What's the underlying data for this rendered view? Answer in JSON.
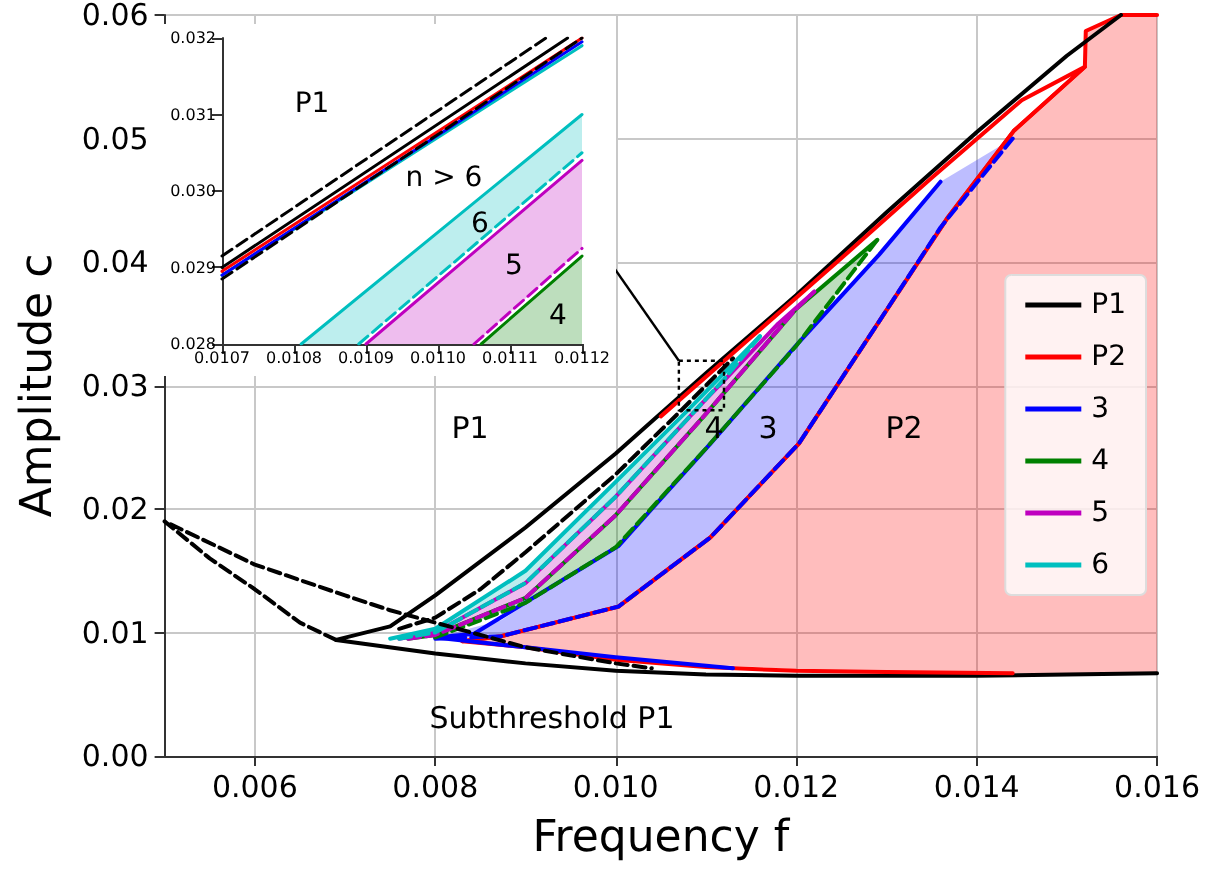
{
  "chart_data": [
    {
      "type": "line",
      "xlabel": "Frequency f",
      "ylabel": "Amplitude c",
      "xlim": [
        0.005,
        0.016
      ],
      "ylim": [
        0,
        0.06
      ],
      "xticks": [
        0.006,
        0.008,
        {
          "value": 0.01,
          "label": "0.010"
        },
        0.012,
        0.014,
        0.016
      ],
      "yticks": [
        {
          "value": 0,
          "label": "0.00"
        },
        {
          "value": 0.01,
          "label": "0.01"
        },
        {
          "value": 0.02,
          "label": "0.02"
        },
        {
          "value": 0.03,
          "label": "0.03"
        },
        {
          "value": 0.04,
          "label": "0.04"
        },
        {
          "value": 0.05,
          "label": "0.05"
        },
        {
          "value": 0.06,
          "label": "0.06"
        }
      ],
      "grid": true,
      "legend": "right",
      "line_style": "solid",
      "marker": "none",
      "annotations": [
        "P1",
        "4",
        "3",
        "P2",
        "Subthreshold P1"
      ],
      "series": [
        {
          "color": "#ff0000",
          "x": [
            0.0083,
            0.00873,
            0.01003,
            0.01105,
            0.01203,
            0.01292,
            0.01367,
            0.01441,
            0.0152,
            0.01521,
            0.0156,
            0.016
          ],
          "values": [
            0.0093,
            0.0097,
            0.0121,
            0.0177,
            0.0253,
            0.0352,
            0.0435,
            0.0506,
            0.0558,
            0.0587,
            0.06,
            0.06
          ],
          "lower": [
            0.0093,
            0.0091,
            0.008,
            0.0074,
            0.007,
            0.0069,
            0.0068,
            0.0067,
            0.0067,
            0.0067,
            0.0067,
            0.0067
          ],
          "upper": [
            0.0093,
            0.0097,
            0.0121,
            0.0177,
            0.0253,
            0.0352,
            0.0435,
            0.0506,
            0.0558,
            0.0587,
            0.06,
            0.06
          ]
        },
        {
          "color": "#0000ff",
          "line_style": "dashed",
          "x": [
            0.008,
            0.00873,
            0.01003,
            0.01105,
            0.01203,
            0.01292,
            0.0136,
            0.0144
          ],
          "values": [
            0.0095,
            0.0097,
            0.0121,
            0.0177,
            0.0253,
            0.0352,
            0.0428,
            0.05
          ],
          "lower": [
            0.0095,
            0.0097,
            0.0121,
            0.0177,
            0.0253,
            0.0352,
            0.0428,
            0.05
          ],
          "upper": [
            0.0096,
            0.011,
            0.017,
            0.0253,
            0.0335,
            0.0406,
            0.0465,
            0.05
          ]
        },
        {
          "color": "#008000",
          "line_style": "dashed",
          "x": [
            0.008,
            0.009,
            0.01,
            0.011,
            0.012,
            0.0129
          ],
          "values": [
            0.0096,
            0.0124,
            0.0169,
            0.0249,
            0.0332,
            0.0418
          ],
          "lower": [
            0.0096,
            0.0124,
            0.0169,
            0.0249,
            0.0332,
            0.0418
          ],
          "upper": [
            0.0098,
            0.0128,
            0.0195,
            0.0277,
            0.0362,
            0.0418
          ]
        },
        {
          "color": "#bf00bf",
          "line_style": "dashed",
          "x": [
            0.0077,
            0.008,
            0.009,
            0.01,
            0.011,
            0.012,
            0.0122
          ],
          "values": [
            0.0095,
            0.0098,
            0.0128,
            0.0195,
            0.0277,
            0.0362,
            0.0376
          ],
          "lower": [
            0.0095,
            0.0098,
            0.0128,
            0.0195,
            0.0277,
            0.0362,
            0.0376
          ],
          "upper": [
            0.0095,
            0.01,
            0.014,
            0.021,
            0.0289,
            0.0364,
            0.0376
          ]
        },
        {
          "color": "#00bfbf",
          "line_style": "dashed",
          "x": [
            0.0076,
            0.008,
            0.009,
            0.01,
            0.011,
            0.0112,
            0.0116
          ],
          "values": [
            0.0095,
            0.01,
            0.014,
            0.021,
            0.0289,
            0.0305,
            0.034
          ],
          "lower": [
            0.0095,
            0.01,
            0.014,
            0.021,
            0.0289,
            0.0305,
            0.034
          ],
          "upper": [
            0.0097,
            0.0103,
            0.015,
            0.0222,
            0.0295,
            0.031,
            0.034
          ]
        },
        {
          "color": "#000000",
          "line_style": "dashed",
          "x": [
            0.0069,
            0.0065,
            0.006,
            0.0055,
            0.005,
            0.006,
            0.007,
            0.0075,
            0.008,
            0.009,
            0.01,
            0.0104
          ],
          "values": [
            0.0094,
            0.0108,
            0.0135,
            0.016,
            0.019,
            0.0155,
            0.013,
            0.0118,
            0.0108,
            0.0088,
            0.0075,
            0.0071
          ]
        },
        {
          "color": "#000000",
          "line_style": "dashed",
          "x": [
            0.0076,
            0.008,
            0.0085,
            0.009,
            0.01,
            0.0107,
            0.0113
          ],
          "values": [
            0.0103,
            0.0112,
            0.0135,
            0.0165,
            0.0228,
            0.0278,
            0.0322
          ]
        },
        {
          "name": "P1",
          "color": "#000000",
          "x": [
            0.0156,
            0.015,
            0.014,
            0.013,
            0.012,
            0.011,
            0.01,
            0.009,
            0.008,
            0.0075,
            0.0069,
            0.008,
            0.009,
            0.01,
            0.011,
            0.012,
            0.013,
            0.014,
            0.015,
            0.016
          ],
          "values": [
            0.06,
            0.0567,
            0.0505,
            0.044,
            0.0373,
            0.031,
            0.0245,
            0.0185,
            0.013,
            0.0105,
            0.0094,
            0.0083,
            0.0075,
            0.0069,
            0.0066,
            0.0065,
            0.0065,
            0.0065,
            0.0066,
            0.0067
          ]
        },
        {
          "name": "P2",
          "color": "#ff0000",
          "x": [
            0.0105,
            0.0115,
            0.0125,
            0.0135,
            0.0145,
            0.0152,
            0.01441,
            0.01367,
            0.01292,
            0.01203,
            0.01105,
            0.01003,
            0.00873,
            0.0083,
            0.009,
            0.01,
            0.011,
            0.012,
            0.013,
            0.0144
          ],
          "values": [
            0.0275,
            0.0339,
            0.0403,
            0.0468,
            0.0531,
            0.0558,
            0.0506,
            0.0435,
            0.0352,
            0.0253,
            0.0177,
            0.0121,
            0.0097,
            0.0093,
            0.0088,
            0.0078,
            0.0072,
            0.0069,
            0.0068,
            0.0067
          ]
        },
        {
          "name": "3",
          "color": "#0000ff",
          "x": [
            0.0113,
            0.01,
            0.009,
            0.008,
            0.00843,
            0.01003,
            0.01105,
            0.01203,
            0.01292,
            0.0136
          ],
          "values": [
            0.0071,
            0.008,
            0.0088,
            0.0096,
            0.0099,
            0.017,
            0.0253,
            0.0335,
            0.0406,
            0.0465
          ]
        },
        {
          "name": "4",
          "color": "#008000",
          "x": [
            0.0077,
            0.008,
            0.009,
            0.01,
            0.011,
            0.012,
            0.0129
          ],
          "values": [
            0.0095,
            0.0098,
            0.0128,
            0.0195,
            0.0277,
            0.0362,
            0.0418
          ]
        },
        {
          "name": "5",
          "color": "#bf00bf",
          "x": [
            0.0076,
            0.008,
            0.009,
            0.01,
            0.011,
            0.0112,
            0.0118,
            0.0122
          ],
          "values": [
            0.0095,
            0.01,
            0.014,
            0.021,
            0.0289,
            0.0304,
            0.035,
            0.0376
          ]
        },
        {
          "name": "6",
          "color": "#00bfbf",
          "x": [
            0.0075,
            0.008,
            0.009,
            0.01,
            0.0108,
            0.0112,
            0.0116
          ],
          "values": [
            0.0095,
            0.0103,
            0.015,
            0.0222,
            0.028,
            0.031,
            0.034
          ]
        }
      ]
    },
    {
      "type": "line",
      "xlim": [
        0.0107,
        0.0112
      ],
      "ylim": [
        0.028,
        0.032
      ],
      "xticks": [
        {
          "value": 0.0107,
          "label": "0.0107"
        },
        {
          "value": 0.0108,
          "label": "0.0108"
        },
        {
          "value": 0.0109,
          "label": "0.0109"
        },
        {
          "value": 0.011,
          "label": "0.0110"
        },
        {
          "value": 0.0111,
          "label": "0.0111"
        },
        {
          "value": 0.0112,
          "label": "0.0112"
        }
      ],
      "yticks": [
        {
          "value": 0.028,
          "label": "0.028"
        },
        {
          "value": 0.029,
          "label": "0.029"
        },
        {
          "value": 0.03,
          "label": "0.030"
        },
        {
          "value": 0.031,
          "label": "0.031"
        },
        {
          "value": 0.032,
          "label": "0.032"
        }
      ],
      "line_style": "solid",
      "marker": "none",
      "annotations": [
        "P1",
        "n > 6",
        "6",
        "5",
        "4"
      ],
      "series": [
        {
          "color": "#00bfbf",
          "line_style": "dashed",
          "x": [
            0.01081,
            0.01089,
            0.0112
          ],
          "values": [
            null,
            0.028,
            0.0305
          ],
          "lower": [
            0.028,
            0.028,
            0.0305
          ],
          "upper": [
            0.028,
            0.02862,
            0.031
          ]
        },
        {
          "color": "#bf00bf",
          "line_style": "dashed",
          "x": [
            0.0109,
            0.01105,
            0.0112
          ],
          "values": [
            null,
            0.028,
            0.02925
          ],
          "lower": [
            0.028,
            0.028,
            0.02925
          ],
          "upper": [
            0.028,
            0.0292,
            0.0304
          ]
        },
        {
          "color": "#008000",
          "x": [
            0.01106,
            0.0112
          ],
          "values": [
            0.028,
            0.02915
          ],
          "lower": [
            0.028,
            0.028
          ],
          "upper": [
            0.028,
            0.02915
          ]
        },
        {
          "color": "#000000",
          "line_style": "dashed",
          "x": [
            0.0107,
            0.01115
          ],
          "values": [
            0.02915,
            0.032
          ]
        },
        {
          "color": "#000000",
          "line_style": "dashed",
          "x": [
            0.0107,
            0.0112
          ],
          "values": [
            0.02885,
            0.032
          ]
        },
        {
          "color": "#00bfbf",
          "x": [
            0.0107,
            0.0112
          ],
          "values": [
            0.0289,
            0.0319
          ]
        },
        {
          "color": "#0000ff",
          "x": [
            0.0107,
            0.0112
          ],
          "values": [
            0.0289,
            0.03195
          ]
        },
        {
          "color": "#ff0000",
          "x": [
            0.0107,
            0.0112
          ],
          "values": [
            0.02895,
            0.032
          ]
        },
        {
          "color": "#000000",
          "x": [
            0.0107,
            0.01118
          ],
          "values": [
            0.029,
            0.032
          ]
        },
        {
          "color": "#00bfbf",
          "x": [
            0.01081,
            0.0112
          ],
          "values": [
            0.028,
            0.031
          ]
        },
        {
          "color": "#bf00bf",
          "x": [
            0.0109,
            0.0112
          ],
          "values": [
            0.028,
            0.0304
          ]
        }
      ]
    }
  ]
}
